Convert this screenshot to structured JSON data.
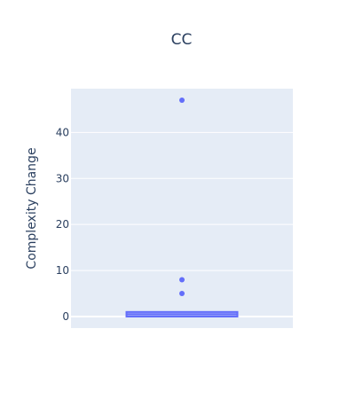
{
  "chart_data": {
    "type": "box",
    "title": "CC",
    "xlabel": "",
    "ylabel": "Complexity Change",
    "ylim": [
      -2.5,
      49.5
    ],
    "yticks": [
      0,
      10,
      20,
      30,
      40
    ],
    "grid": true,
    "colors": {
      "plot_bg": "#e5ecf6",
      "grid": "#ffffff",
      "box_fill": "#9fa9f8",
      "box_line": "#636efa",
      "text": "#2a3f5f"
    },
    "box": {
      "q1": 0,
      "median": 0.5,
      "q3": 1,
      "lower_whisker": 0,
      "upper_whisker": 1
    },
    "outliers": [
      47,
      8,
      5
    ]
  }
}
